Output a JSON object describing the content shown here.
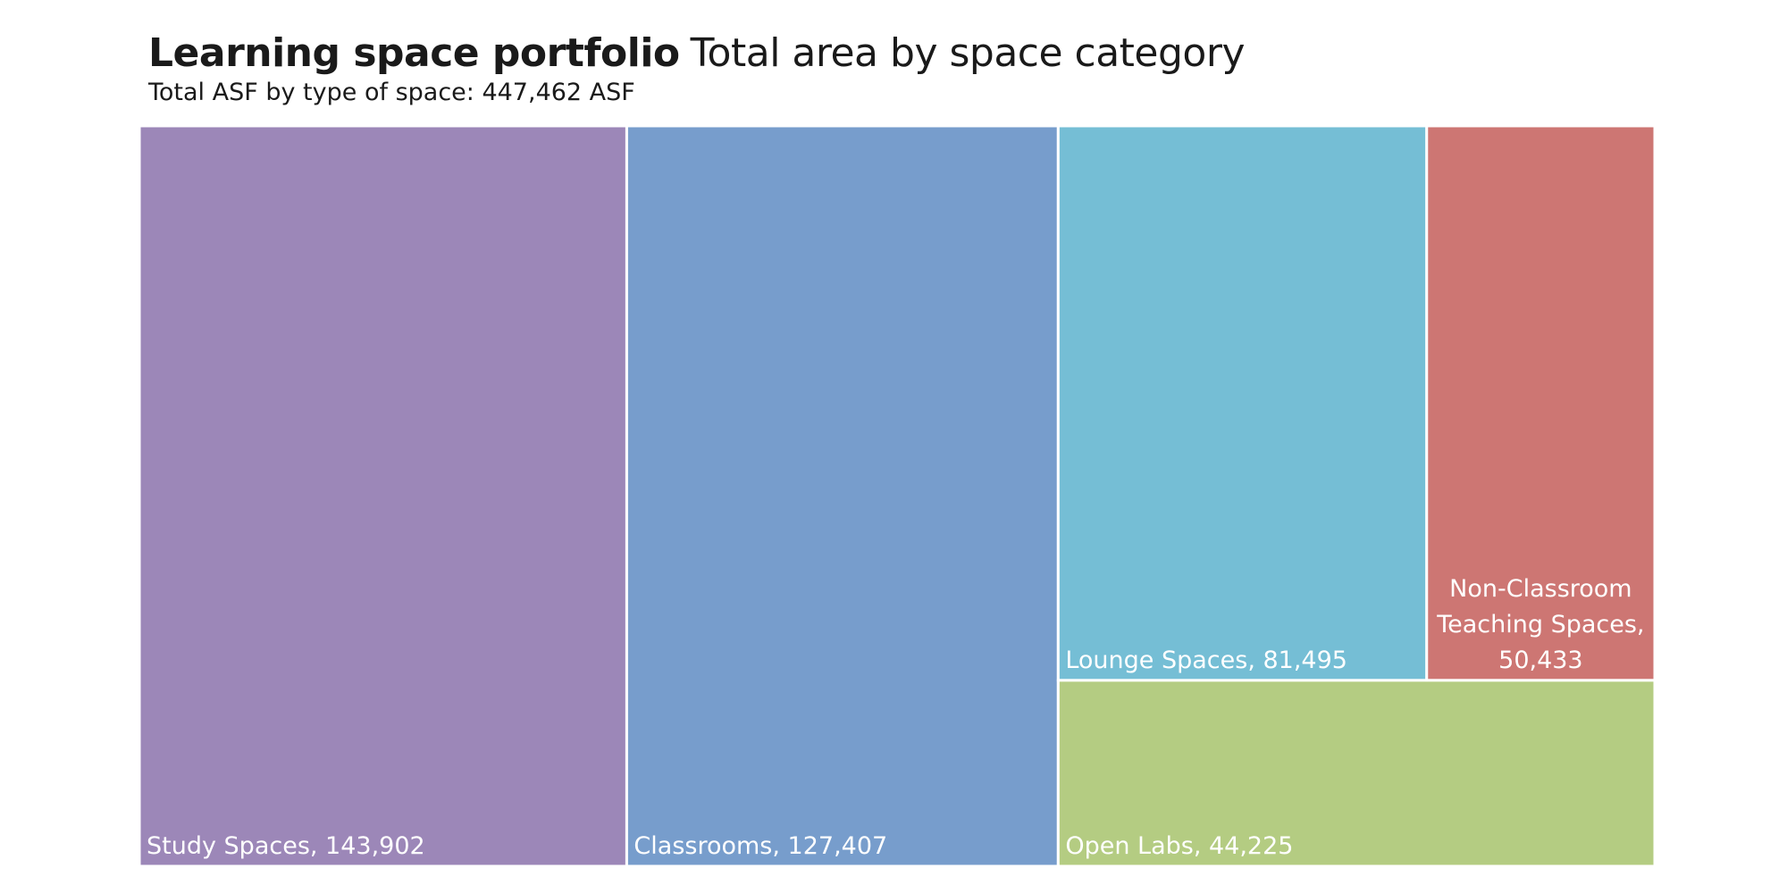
{
  "header": {
    "title_bold": "Learning space portfolio",
    "title_rest": "Total area by space category",
    "subtitle": "Total ASF by type of space: 447,462 ASF"
  },
  "chart_data": {
    "type": "treemap",
    "title": "Learning space portfolio Total area by space category",
    "subtitle": "Total ASF by type of space: 447,462 ASF",
    "total": 447462,
    "nodes": [
      {
        "name": "Study Spaces",
        "value": 143902,
        "label": "Study Spaces, 143,902",
        "color": "#9c87b8"
      },
      {
        "name": "Classrooms",
        "value": 127407,
        "label": "Classrooms, 127,407",
        "color": "#779dcc"
      },
      {
        "name": "Lounge Spaces",
        "value": 81495,
        "label": "Lounge Spaces, 81,495",
        "color": "#75bed5"
      },
      {
        "name": "Non-Classroom Teaching Spaces",
        "value": 50433,
        "label_lines": [
          "Non-Classroom",
          "Teaching Spaces,",
          "50,433"
        ],
        "color": "#cd7673"
      },
      {
        "name": "Open Labs",
        "value": 44225,
        "label": "Open Labs, 44,225",
        "color": "#b4cc82"
      }
    ]
  }
}
